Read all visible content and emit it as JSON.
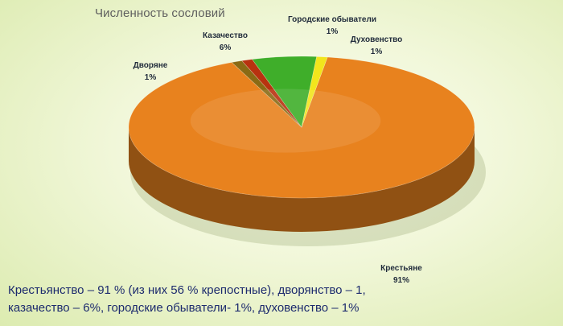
{
  "chart_data": {
    "type": "pie",
    "title": "Численность сословий",
    "slices": [
      {
        "name": "Крестьяне",
        "value": 91,
        "value_label": "91%",
        "color": "#e8821e"
      },
      {
        "name": "Духовенство",
        "value": 1,
        "value_label": "1%",
        "color": "#8a6a14"
      },
      {
        "name": "Городские обыватели",
        "value": 1,
        "value_label": "1%",
        "color": "#b8320f"
      },
      {
        "name": "Казачество",
        "value": 6,
        "value_label": "6%",
        "color": "#3fae2a"
      },
      {
        "name": "Дворяне",
        "value": 1,
        "value_label": "1%",
        "color": "#f2e51c"
      }
    ],
    "legend": "none"
  },
  "caption": {
    "line1": "Крестьянство – 91 % (из них 56 % крепостные), дворянство – 1,",
    "line2": "казачество – 6%, городские обыватели- 1%, духовенство – 1%"
  }
}
